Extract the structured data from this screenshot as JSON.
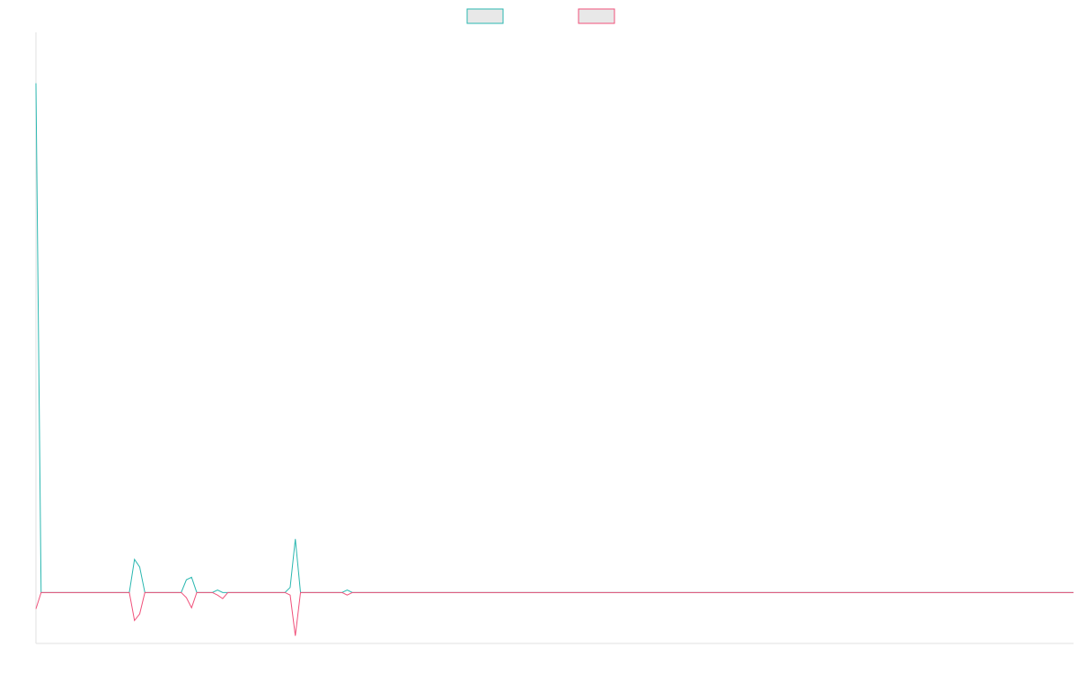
{
  "chart_data": {
    "type": "line",
    "title": "",
    "xlabel": "",
    "ylabel": "",
    "legend_position": "top-center",
    "grid": false,
    "xlim": [
      0,
      200
    ],
    "ylim": [
      -100,
      1100
    ],
    "series": [
      {
        "color": "#2ab7b0",
        "legend_fill": "#e8e8e8",
        "values": [
          1000,
          0,
          0,
          0,
          0,
          0,
          0,
          0,
          0,
          0,
          0,
          0,
          0,
          0,
          0,
          0,
          0,
          0,
          0,
          65,
          50,
          0,
          0,
          0,
          0,
          0,
          0,
          0,
          0,
          25,
          30,
          0,
          0,
          0,
          0,
          5,
          0,
          0,
          0,
          0,
          0,
          0,
          0,
          0,
          0,
          0,
          0,
          0,
          0,
          10,
          105,
          0,
          0,
          0,
          0,
          0,
          0,
          0,
          0,
          0,
          5,
          0,
          0,
          0,
          0,
          0,
          0,
          0,
          0,
          0,
          0,
          0,
          0,
          0,
          0,
          0,
          0,
          0,
          0,
          0,
          0,
          0,
          0,
          0,
          0,
          0,
          0,
          0,
          0,
          0,
          0,
          0,
          0,
          0,
          0,
          0,
          0,
          0,
          0,
          0,
          0,
          0,
          0,
          0,
          0,
          0,
          0,
          0,
          0,
          0,
          0,
          0,
          0,
          0,
          0,
          0,
          0,
          0,
          0,
          0,
          0,
          0,
          0,
          0,
          0,
          0,
          0,
          0,
          0,
          0,
          0,
          0,
          0,
          0,
          0,
          0,
          0,
          0,
          0,
          0,
          0,
          0,
          0,
          0,
          0,
          0,
          0,
          0,
          0,
          0,
          0,
          0,
          0,
          0,
          0,
          0,
          0,
          0,
          0,
          0,
          0,
          0,
          0,
          0,
          0,
          0,
          0,
          0,
          0,
          0,
          0,
          0,
          0,
          0,
          0,
          0,
          0,
          0,
          0,
          0,
          0,
          0,
          0,
          0,
          0,
          0,
          0,
          0,
          0,
          0,
          0,
          0,
          0,
          0,
          0,
          0,
          0,
          0,
          0,
          0,
          0
        ]
      },
      {
        "color": "#f0507a",
        "legend_fill": "#e8e8e8",
        "values": [
          -32,
          0,
          0,
          0,
          0,
          0,
          0,
          0,
          0,
          0,
          0,
          0,
          0,
          0,
          0,
          0,
          0,
          0,
          0,
          -55,
          -42,
          0,
          0,
          0,
          0,
          0,
          0,
          0,
          0,
          -10,
          -30,
          0,
          0,
          0,
          0,
          -5,
          -12,
          0,
          0,
          0,
          0,
          0,
          0,
          0,
          0,
          0,
          0,
          0,
          0,
          -5,
          -85,
          0,
          0,
          0,
          0,
          0,
          0,
          0,
          0,
          0,
          -5,
          0,
          0,
          0,
          0,
          0,
          0,
          0,
          0,
          0,
          0,
          0,
          0,
          0,
          0,
          0,
          0,
          0,
          0,
          0,
          0,
          0,
          0,
          0,
          0,
          0,
          0,
          0,
          0,
          0,
          0,
          0,
          0,
          0,
          0,
          0,
          0,
          0,
          0,
          0,
          0,
          0,
          0,
          0,
          0,
          0,
          0,
          0,
          0,
          0,
          0,
          0,
          0,
          0,
          0,
          0,
          0,
          0,
          0,
          0,
          0,
          0,
          0,
          0,
          0,
          0,
          0,
          0,
          0,
          0,
          0,
          0,
          0,
          0,
          0,
          0,
          0,
          0,
          0,
          0,
          0,
          0,
          0,
          0,
          0,
          0,
          0,
          0,
          0,
          0,
          0,
          0,
          0,
          0,
          0,
          0,
          0,
          0,
          0,
          0,
          0,
          0,
          0,
          0,
          0,
          0,
          0,
          0,
          0,
          0,
          0,
          0,
          0,
          0,
          0,
          0,
          0,
          0,
          0,
          0,
          0,
          0,
          0,
          0,
          0,
          0,
          0,
          0,
          0,
          0,
          0,
          0,
          0,
          0,
          0,
          0,
          0,
          0,
          0,
          0,
          0
        ]
      }
    ]
  }
}
